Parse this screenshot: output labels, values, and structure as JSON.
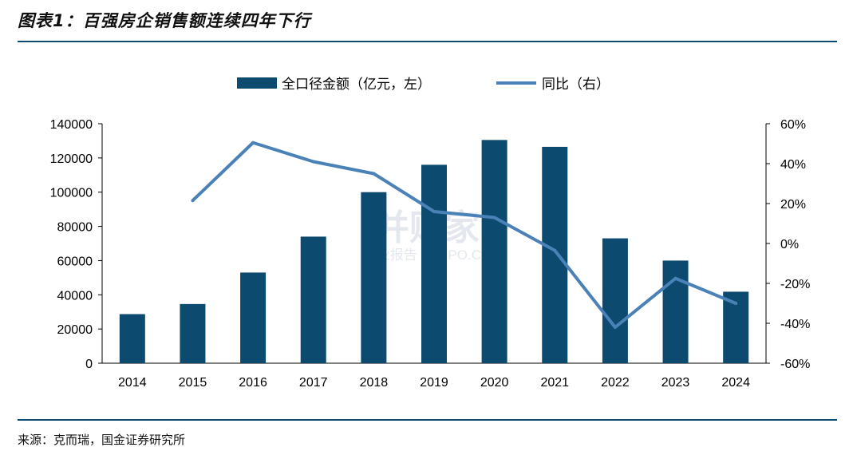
{
  "title": "图表1：百强房企销售额连续四年下行",
  "source": "来源：克而瑞，国金证券研究所",
  "watermark": {
    "main": "并购家",
    "sub": "行业报告 IPOIPO.CN"
  },
  "colors": {
    "bar": "#0d4a70",
    "line": "#4a82b8",
    "rule": "#0d4a70"
  },
  "chart_data": {
    "type": "bar+line",
    "categories": [
      "2014",
      "2015",
      "2016",
      "2017",
      "2018",
      "2019",
      "2020",
      "2021",
      "2022",
      "2023",
      "2024"
    ],
    "series": [
      {
        "name": "全口径金额（亿元，左）",
        "type": "bar",
        "axis": "left",
        "values": [
          28700,
          34600,
          53000,
          74000,
          100000,
          116000,
          130500,
          126500,
          73000,
          60000,
          41800
        ]
      },
      {
        "name": "同比（右）",
        "type": "line",
        "axis": "right",
        "values": [
          null,
          21.5,
          50.5,
          41,
          35,
          16,
          13,
          -3.5,
          -42,
          -17.5,
          -30
        ]
      }
    ],
    "y_left": {
      "range": [
        0,
        140000
      ],
      "ticks": [
        "0",
        "20000",
        "40000",
        "60000",
        "80000",
        "100000",
        "120000",
        "140000"
      ]
    },
    "y_right": {
      "range": [
        -60,
        60
      ],
      "ticks": [
        "-60%",
        "-40%",
        "-20%",
        "0%",
        "20%",
        "40%",
        "60%"
      ]
    },
    "legend_position": "top-center",
    "grid": false
  }
}
